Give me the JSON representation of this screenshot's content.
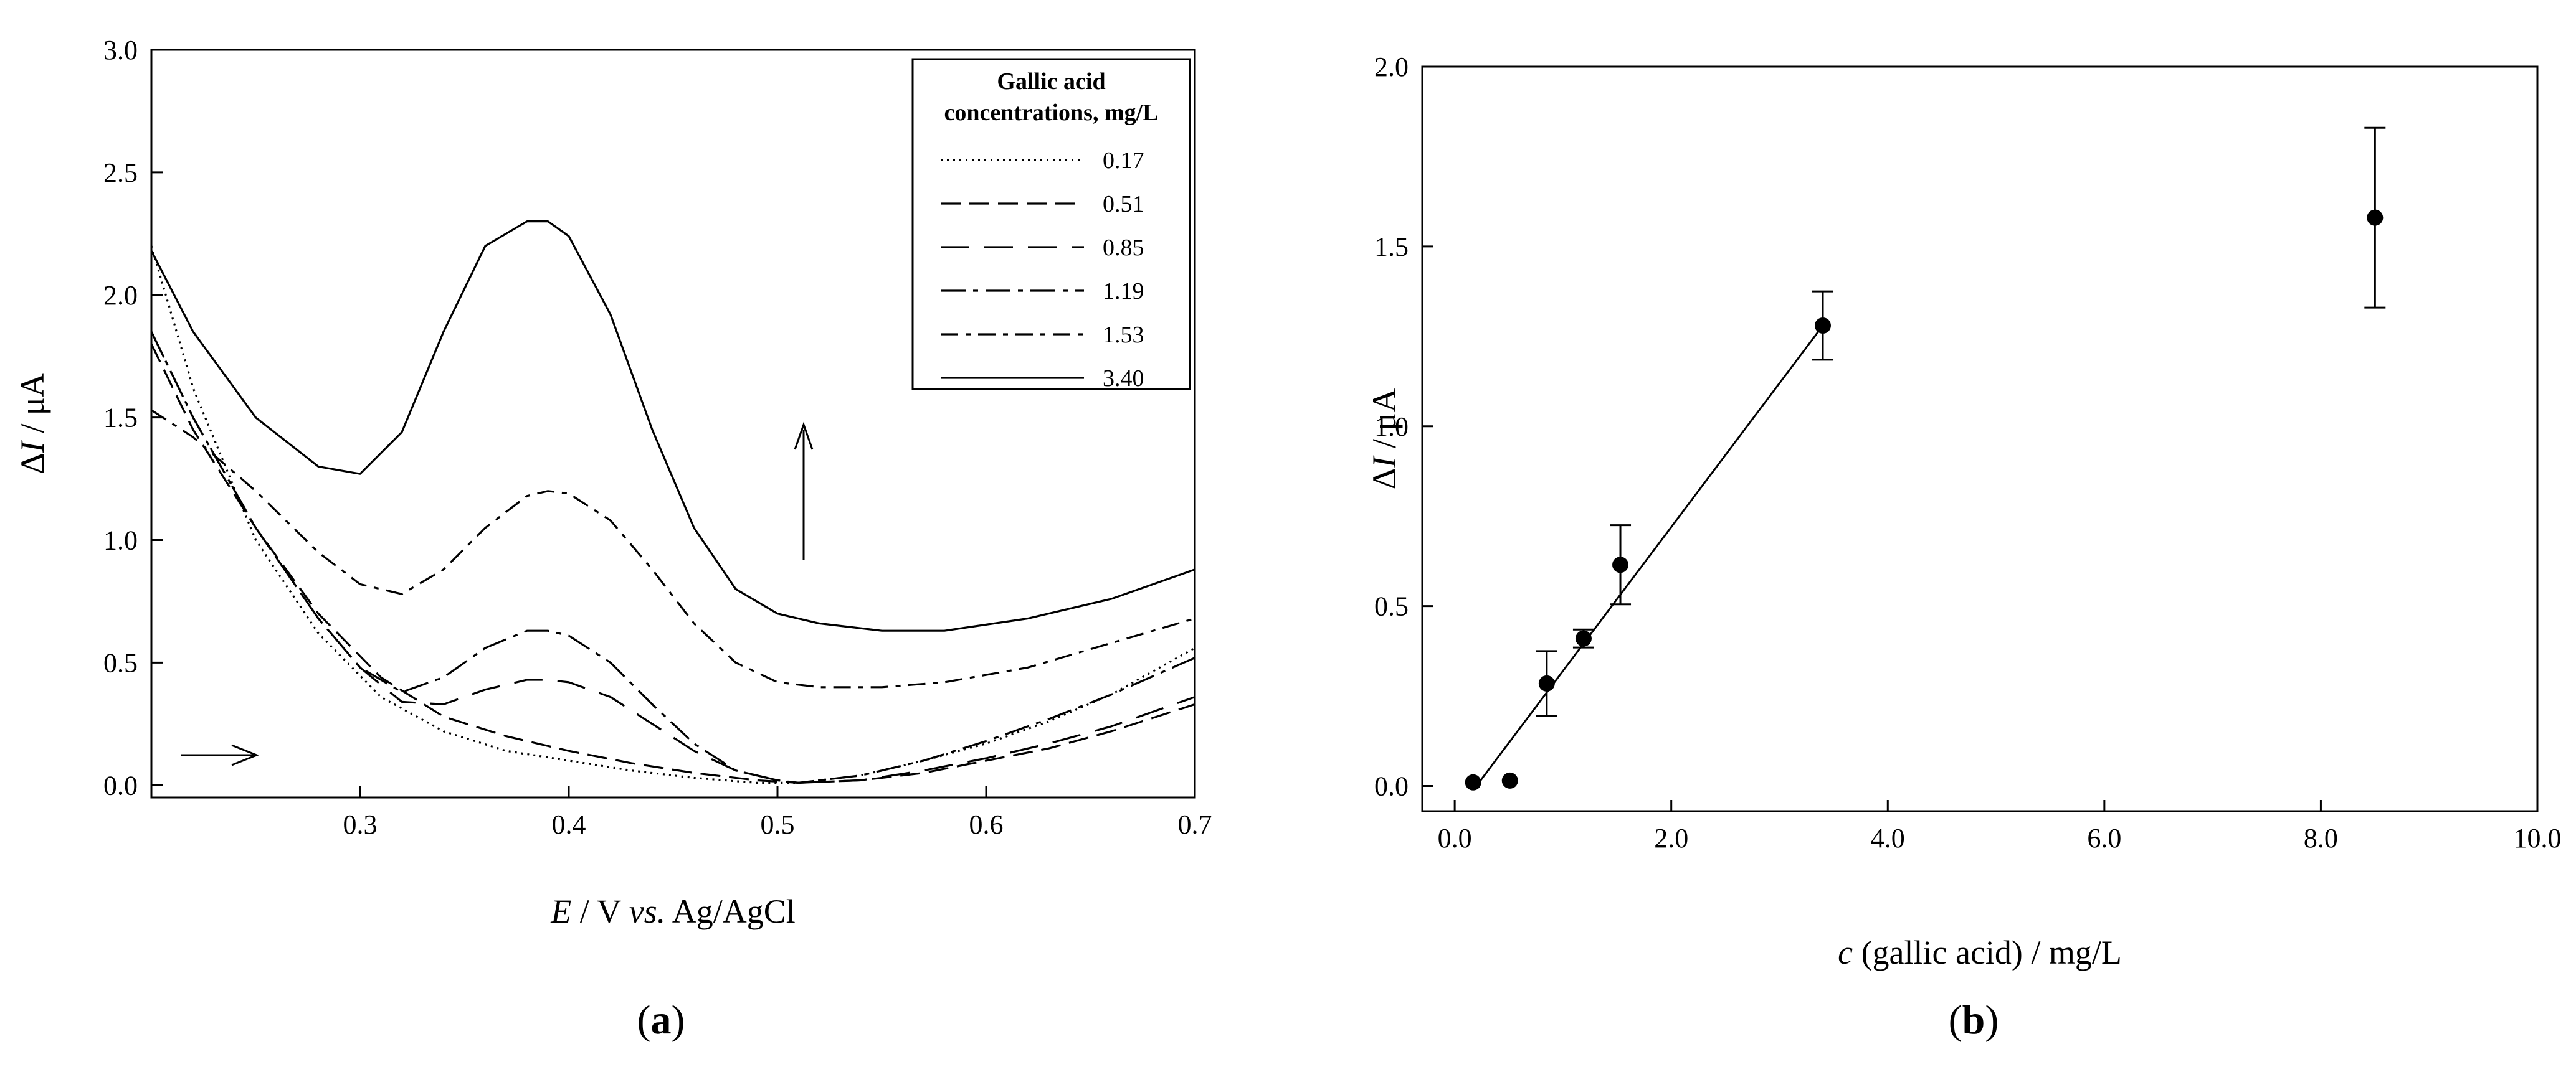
{
  "chart_data": [
    {
      "type": "line",
      "panel_label": "a",
      "xlabel_parts": {
        "var": "E",
        "mid": " / V ",
        "vs": "vs.",
        "end": " Ag/AgCl"
      },
      "ylabel_parts": {
        "sym": "Δ",
        "var": "I",
        "unit": " / μA"
      },
      "xlim": [
        0.2,
        0.7
      ],
      "ylim": [
        -0.05,
        3.0
      ],
      "xticks": [
        0.3,
        0.4,
        0.5,
        0.6,
        0.7
      ],
      "xtick_labels": [
        "0.3",
        "0.4",
        "0.5",
        "0.6",
        "0.7"
      ],
      "yticks": [
        0.0,
        0.5,
        1.0,
        1.5,
        2.0,
        2.5,
        3.0
      ],
      "ytick_labels": [
        "0.0",
        "0.5",
        "1.0",
        "1.5",
        "2.0",
        "2.5",
        "3.0"
      ],
      "legend": {
        "title_lines": [
          "Gallic acid",
          "concentrations, mg/L"
        ],
        "placement": "top-right"
      },
      "series": [
        {
          "name": "0.17",
          "dash": "3,7",
          "x": [
            0.2,
            0.22,
            0.25,
            0.28,
            0.31,
            0.34,
            0.37,
            0.4,
            0.43,
            0.46,
            0.49,
            0.51,
            0.54,
            0.57,
            0.6,
            0.63,
            0.66,
            0.7
          ],
          "y": [
            2.2,
            1.62,
            1.0,
            0.62,
            0.36,
            0.22,
            0.14,
            0.1,
            0.06,
            0.03,
            0.01,
            0.01,
            0.04,
            0.1,
            0.17,
            0.26,
            0.37,
            0.56
          ]
        },
        {
          "name": "0.51",
          "dash": "32,14",
          "x": [
            0.2,
            0.22,
            0.25,
            0.28,
            0.31,
            0.34,
            0.37,
            0.4,
            0.43,
            0.46,
            0.49,
            0.51,
            0.54,
            0.57,
            0.6,
            0.63,
            0.66,
            0.7
          ],
          "y": [
            1.8,
            1.45,
            1.05,
            0.7,
            0.44,
            0.28,
            0.2,
            0.14,
            0.09,
            0.05,
            0.02,
            0.01,
            0.02,
            0.05,
            0.1,
            0.15,
            0.22,
            0.33
          ]
        },
        {
          "name": "0.85",
          "dash": "46,24",
          "x": [
            0.2,
            0.22,
            0.25,
            0.28,
            0.3,
            0.32,
            0.34,
            0.36,
            0.38,
            0.39,
            0.4,
            0.42,
            0.44,
            0.46,
            0.48,
            0.5,
            0.51,
            0.54,
            0.57,
            0.6,
            0.63,
            0.66,
            0.7
          ],
          "y": [
            1.85,
            1.5,
            1.05,
            0.68,
            0.48,
            0.34,
            0.33,
            0.39,
            0.43,
            0.43,
            0.42,
            0.36,
            0.25,
            0.14,
            0.06,
            0.02,
            0.01,
            0.02,
            0.06,
            0.11,
            0.17,
            0.24,
            0.36
          ]
        },
        {
          "name": "1.19",
          "dash": "40,12,8,12",
          "x": [
            0.2,
            0.22,
            0.25,
            0.28,
            0.3,
            0.32,
            0.34,
            0.36,
            0.38,
            0.39,
            0.4,
            0.42,
            0.44,
            0.46,
            0.48,
            0.5,
            0.51,
            0.54,
            0.57,
            0.6,
            0.63,
            0.66,
            0.7
          ],
          "y": [
            1.85,
            1.5,
            1.05,
            0.68,
            0.48,
            0.38,
            0.44,
            0.56,
            0.63,
            0.63,
            0.61,
            0.5,
            0.33,
            0.17,
            0.06,
            0.02,
            0.01,
            0.04,
            0.1,
            0.18,
            0.27,
            0.37,
            0.52
          ]
        },
        {
          "name": "1.53",
          "dash": "28,12,8,12",
          "x": [
            0.2,
            0.22,
            0.25,
            0.28,
            0.3,
            0.32,
            0.34,
            0.36,
            0.38,
            0.39,
            0.4,
            0.42,
            0.44,
            0.46,
            0.48,
            0.5,
            0.52,
            0.55,
            0.58,
            0.62,
            0.66,
            0.7
          ],
          "y": [
            1.53,
            1.42,
            1.2,
            0.95,
            0.82,
            0.78,
            0.88,
            1.05,
            1.18,
            1.2,
            1.19,
            1.08,
            0.88,
            0.66,
            0.5,
            0.42,
            0.4,
            0.4,
            0.42,
            0.48,
            0.58,
            0.68
          ]
        },
        {
          "name": "3.40",
          "dash": "",
          "x": [
            0.2,
            0.22,
            0.25,
            0.28,
            0.3,
            0.32,
            0.34,
            0.36,
            0.38,
            0.39,
            0.4,
            0.42,
            0.44,
            0.46,
            0.48,
            0.5,
            0.52,
            0.55,
            0.58,
            0.62,
            0.66,
            0.7
          ],
          "y": [
            2.18,
            1.85,
            1.5,
            1.3,
            1.27,
            1.44,
            1.85,
            2.2,
            2.3,
            2.3,
            2.24,
            1.92,
            1.45,
            1.05,
            0.8,
            0.7,
            0.66,
            0.63,
            0.63,
            0.68,
            0.76,
            0.88
          ]
        }
      ]
    },
    {
      "type": "scatter",
      "panel_label": "b",
      "xlabel_parts": {
        "var": "c",
        "end": " (gallic acid) / mg/L"
      },
      "ylabel_parts": {
        "sym": "Δ",
        "var": "I",
        "unit": " / μA"
      },
      "xlim": [
        -0.3,
        10.0
      ],
      "ylim": [
        -0.07,
        2.0
      ],
      "xticks": [
        0.0,
        2.0,
        4.0,
        6.0,
        8.0,
        10.0
      ],
      "xtick_labels": [
        "0.0",
        "2.0",
        "4.0",
        "6.0",
        "8.0",
        "10.0"
      ],
      "yticks": [
        0.0,
        0.5,
        1.0,
        1.5,
        2.0
      ],
      "ytick_labels": [
        "0.0",
        "0.5",
        "1.0",
        "1.5",
        "2.0"
      ],
      "points": [
        {
          "x": 0.17,
          "y": 0.01,
          "err": 0.0
        },
        {
          "x": 0.51,
          "y": 0.015,
          "err": 0.0
        },
        {
          "x": 0.85,
          "y": 0.285,
          "err": 0.09
        },
        {
          "x": 1.19,
          "y": 0.41,
          "err": 0.025
        },
        {
          "x": 1.53,
          "y": 0.615,
          "err": 0.11
        },
        {
          "x": 3.4,
          "y": 1.28,
          "err": 0.095
        },
        {
          "x": 8.5,
          "y": 1.58,
          "err": 0.25
        }
      ],
      "fit_line": {
        "x": [
          0.2,
          3.4
        ],
        "y": [
          0.0,
          1.28
        ]
      }
    }
  ]
}
